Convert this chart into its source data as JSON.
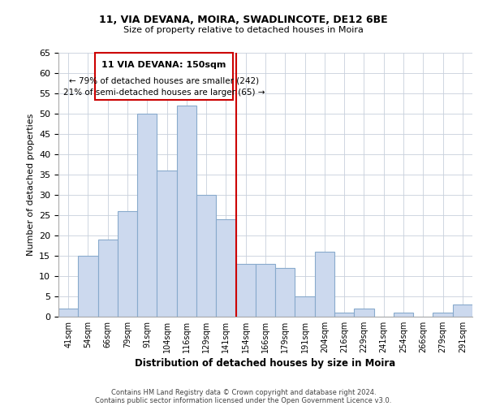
{
  "title1": "11, VIA DEVANA, MOIRA, SWADLINCOTE, DE12 6BE",
  "title2": "Size of property relative to detached houses in Moira",
  "xlabel": "Distribution of detached houses by size in Moira",
  "ylabel": "Number of detached properties",
  "bin_labels": [
    "41sqm",
    "54sqm",
    "66sqm",
    "79sqm",
    "91sqm",
    "104sqm",
    "116sqm",
    "129sqm",
    "141sqm",
    "154sqm",
    "166sqm",
    "179sqm",
    "191sqm",
    "204sqm",
    "216sqm",
    "229sqm",
    "241sqm",
    "254sqm",
    "266sqm",
    "279sqm",
    "291sqm"
  ],
  "bar_values": [
    2,
    15,
    19,
    26,
    50,
    36,
    52,
    30,
    24,
    13,
    13,
    12,
    5,
    16,
    1,
    2,
    0,
    1,
    0,
    1,
    3
  ],
  "bar_color": "#ccd9ee",
  "bar_edge_color": "#88aacc",
  "vline_x_idx": 8.5,
  "vline_color": "#cc0000",
  "annotation_title": "11 VIA DEVANA: 150sqm",
  "annotation_line1": "← 79% of detached houses are smaller (242)",
  "annotation_line2": "21% of semi-detached houses are larger (65) →",
  "annotation_box_edge": "#cc0000",
  "ylim": [
    0,
    65
  ],
  "yticks": [
    0,
    5,
    10,
    15,
    20,
    25,
    30,
    35,
    40,
    45,
    50,
    55,
    60,
    65
  ],
  "footer1": "Contains HM Land Registry data © Crown copyright and database right 2024.",
  "footer2": "Contains public sector information licensed under the Open Government Licence v3.0."
}
